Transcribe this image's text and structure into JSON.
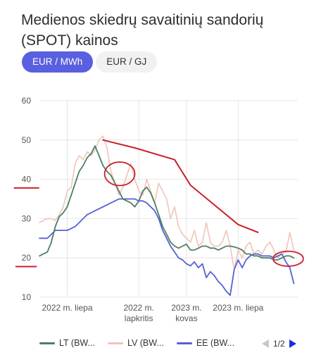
{
  "title": "Medienos skiedrų savaitinių sandorių (SPOT) kainos",
  "unit_tabs": [
    {
      "label": "EUR / MWh",
      "active": true
    },
    {
      "label": "EUR / GJ",
      "active": false
    }
  ],
  "colors": {
    "accent": "#5a5fe0",
    "lt": "#4d7e62",
    "lv": "#efc4bb",
    "ee": "#5560d6",
    "annotation": "#cc1f2c",
    "grid": "#e4e4e4"
  },
  "legend": [
    {
      "label": "LT (BW...",
      "series": "lt"
    },
    {
      "label": "LV (BW...",
      "series": "lv"
    },
    {
      "label": "EE (BW...",
      "series": "ee"
    }
  ],
  "pager": {
    "text": "1/2",
    "prev_icon": "triangle-left-icon",
    "next_icon": "triangle-right-icon"
  },
  "chart_data": {
    "type": "line",
    "ylim": [
      10,
      60
    ],
    "yticks": [
      "60",
      "50",
      "40",
      "30",
      "20",
      "10"
    ],
    "xlim": [
      0,
      65
    ],
    "xticks": [
      {
        "x": 7,
        "lines": [
          "2022 m. liepa"
        ]
      },
      {
        "x": 25,
        "lines": [
          "2022 m.",
          "lapkritis"
        ]
      },
      {
        "x": 37,
        "lines": [
          "2023 m.",
          "kovas"
        ]
      },
      {
        "x": 50,
        "lines": [
          "2023 m. liepa"
        ]
      }
    ],
    "grid": true,
    "legend_position": "bottom",
    "series": [
      {
        "key": "lt",
        "name": "LT (BW...",
        "x": [
          0,
          1,
          2,
          3,
          4,
          5,
          6,
          7,
          8,
          9,
          10,
          11,
          12,
          13,
          14,
          15,
          16,
          17,
          18,
          19,
          20,
          21,
          22,
          23,
          24,
          25,
          26,
          27,
          28,
          29,
          30,
          31,
          32,
          33,
          34,
          35,
          36,
          37,
          38,
          39,
          40,
          41,
          42,
          43,
          44,
          45,
          46,
          47,
          48,
          49,
          50,
          51,
          52,
          53,
          54,
          55,
          56,
          57,
          58,
          59,
          60,
          61,
          62,
          63,
          64
        ],
        "values": [
          20.5,
          21.0,
          21.5,
          24.0,
          28.0,
          30.5,
          31.5,
          33.0,
          36.0,
          39.0,
          42.0,
          43.5,
          45.5,
          46.5,
          48.5,
          46.0,
          43.5,
          42.0,
          41.0,
          39.0,
          37.0,
          35.0,
          34.5,
          34.0,
          33.0,
          34.5,
          37.0,
          38.0,
          36.5,
          34.0,
          31.0,
          28.0,
          26.0,
          24.0,
          23.0,
          22.5,
          23.0,
          23.5,
          22.0,
          22.0,
          22.5,
          23.0,
          23.0,
          22.5,
          22.5,
          22.0,
          22.5,
          23.0,
          23.0,
          22.8,
          22.5,
          22.0,
          21.0,
          21.0,
          20.5,
          20.5,
          20.0,
          20.0,
          20.0,
          19.5,
          19.5,
          20.0,
          20.5,
          20.5,
          20.0
        ]
      },
      {
        "key": "lv",
        "name": "LV (BW...",
        "x": [
          0,
          1,
          2,
          3,
          4,
          5,
          6,
          7,
          8,
          9,
          10,
          11,
          12,
          13,
          14,
          15,
          16,
          17,
          18,
          19,
          20,
          21,
          22,
          23,
          24,
          25,
          26,
          27,
          28,
          29,
          30,
          31,
          32,
          33,
          34,
          35,
          36,
          37,
          38,
          39,
          40,
          41,
          42,
          43,
          44,
          45,
          46,
          47,
          48,
          49,
          50,
          51,
          52,
          53,
          54,
          55,
          56,
          57,
          58,
          59,
          60,
          61,
          62,
          63,
          64
        ],
        "values": [
          29.0,
          29.5,
          30.0,
          30.0,
          29.5,
          31.0,
          33.0,
          37.0,
          38.0,
          44.0,
          46.0,
          45.0,
          47.0,
          46.0,
          47.5,
          50.0,
          51.0,
          48.0,
          42.0,
          39.0,
          36.0,
          38.0,
          41.0,
          44.0,
          40.0,
          37.0,
          36.0,
          40.0,
          37.0,
          34.0,
          39.0,
          37.0,
          35.0,
          30.0,
          33.0,
          28.0,
          26.0,
          25.0,
          24.0,
          27.0,
          23.0,
          24.0,
          29.0,
          24.0,
          23.0,
          23.0,
          24.0,
          27.0,
          23.0,
          17.0,
          22.0,
          20.0,
          23.0,
          24.0,
          21.0,
          22.0,
          21.0,
          23.0,
          24.0,
          22.0,
          20.0,
          21.0,
          21.5,
          26.5,
          22.0
        ]
      },
      {
        "key": "ee",
        "name": "EE (BW...",
        "x": [
          0,
          1,
          2,
          3,
          4,
          5,
          6,
          7,
          8,
          9,
          10,
          11,
          12,
          13,
          14,
          15,
          16,
          17,
          18,
          19,
          20,
          21,
          22,
          23,
          24,
          25,
          26,
          27,
          28,
          29,
          30,
          31,
          32,
          33,
          34,
          35,
          36,
          37,
          38,
          39,
          40,
          41,
          42,
          43,
          44,
          45,
          46,
          47,
          48,
          49,
          50,
          51,
          52,
          53,
          54,
          55,
          56,
          57,
          58,
          59,
          60,
          61,
          62,
          63,
          64
        ],
        "values": [
          25.0,
          25.0,
          25.0,
          26.0,
          27.0,
          27.0,
          27.0,
          27.0,
          27.5,
          28.0,
          29.0,
          30.0,
          31.0,
          31.5,
          32.0,
          32.5,
          33.0,
          33.5,
          34.0,
          34.5,
          35.0,
          35.0,
          35.0,
          35.0,
          35.0,
          34.5,
          34.5,
          34.0,
          33.0,
          32.0,
          30.0,
          27.0,
          25.0,
          23.0,
          21.5,
          20.0,
          19.5,
          18.5,
          18.0,
          19.0,
          17.5,
          18.5,
          15.0,
          16.5,
          15.5,
          14.0,
          13.0,
          11.5,
          10.5,
          17.0,
          19.5,
          17.5,
          19.5,
          20.5,
          21.0,
          21.0,
          20.5,
          20.5,
          20.5,
          20.0,
          20.5,
          21.0,
          19.0,
          17.5,
          13.5
        ]
      }
    ],
    "annotations": {
      "trend_line": [
        [
          16,
          50.0
        ],
        [
          24,
          48.0
        ],
        [
          34,
          45.0
        ],
        [
          38,
          38.5
        ],
        [
          44,
          33.5
        ],
        [
          50,
          28.5
        ],
        [
          55,
          26.5
        ]
      ],
      "circles": [
        {
          "x": 20.2,
          "y": 41.4,
          "rx": 3.8,
          "ry": 3.0
        },
        {
          "x": 62.6,
          "y": 19.8,
          "rx": 3.8,
          "ry": 1.9
        }
      ],
      "dashes": [
        {
          "x0": -6.3,
          "x1": -0.2,
          "y": 37.8
        },
        {
          "x0": -5.9,
          "x1": -0.8,
          "y": 17.8
        }
      ]
    }
  }
}
